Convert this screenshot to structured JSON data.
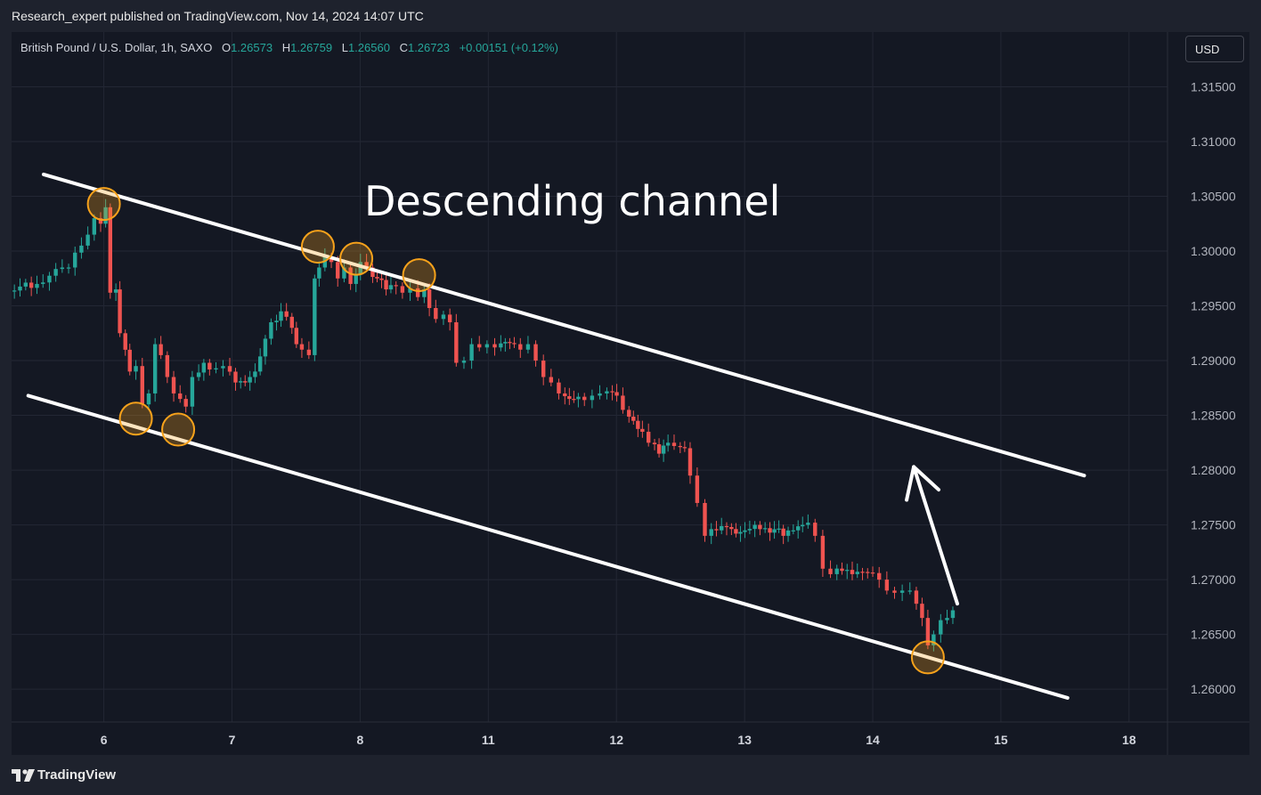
{
  "header": {
    "publisher_line": "Research_expert published on TradingView.com, Nov 14, 2024 14:07 UTC"
  },
  "legend": {
    "symbol": "British Pound / U.S. Dollar, 1h, SAXO",
    "open_label": "O",
    "open": "1.26573",
    "high_label": "H",
    "high": "1.26759",
    "low_label": "L",
    "low": "1.26560",
    "close_label": "C",
    "close": "1.26723",
    "change": "+0.00151 (+0.12%)"
  },
  "toolbar": {
    "currency": "USD"
  },
  "footer": {
    "brand": "TradingView"
  },
  "colors": {
    "up": "#26a69a",
    "down": "#ef5350",
    "background": "#141823",
    "grid": "#232734",
    "annotation": "#ffffff",
    "marker": "#f7a21b"
  },
  "chart_data": {
    "type": "candlestick",
    "title": "",
    "annotation_text": "Descending channel",
    "y_axis": {
      "side": "right",
      "ylim": [
        1.257,
        1.32
      ],
      "ticks": [
        1.26,
        1.265,
        1.27,
        1.275,
        1.28,
        1.285,
        1.29,
        1.295,
        1.3,
        1.305,
        1.31,
        1.315
      ],
      "tick_labels": [
        "1.26000",
        "1.26500",
        "1.27000",
        "1.27500",
        "1.28000",
        "1.28500",
        "1.29000",
        "1.29500",
        "1.30000",
        "1.30500",
        "1.31000",
        "1.31500"
      ]
    },
    "x_axis": {
      "ticks": [
        0,
        1,
        2,
        3,
        4,
        5,
        6,
        7,
        8
      ],
      "tick_labels": [
        "6",
        "7",
        "8",
        "11",
        "12",
        "13",
        "14",
        "15",
        "18"
      ],
      "xlim": [
        -0.72,
        8.3
      ]
    },
    "grid": true,
    "channel": {
      "upper": [
        [
          -0.47,
          1.307
        ],
        [
          7.65,
          1.2795
        ]
      ],
      "lower": [
        [
          -0.59,
          1.2868
        ],
        [
          7.52,
          1.2592
        ]
      ]
    },
    "touch_points": [
      [
        0.0,
        1.3043
      ],
      [
        0.25,
        1.2847
      ],
      [
        0.58,
        1.2837
      ],
      [
        1.67,
        1.3004
      ],
      [
        1.97,
        1.2993
      ],
      [
        2.46,
        1.2978
      ],
      [
        6.43,
        1.2629
      ]
    ],
    "projection_arrow": [
      [
        6.66,
        1.2678
      ],
      [
        6.32,
        1.2803
      ]
    ],
    "path": [
      [
        -0.72,
        1.297
      ],
      [
        -0.5,
        1.2985
      ],
      [
        -0.3,
        1.2985
      ],
      [
        -0.25,
        1.3005
      ],
      [
        -0.15,
        1.3015
      ],
      [
        -0.1,
        1.303
      ],
      [
        -0.05,
        1.3025
      ],
      [
        0.0,
        1.304
      ],
      [
        0.02,
        1.2962
      ],
      [
        0.08,
        1.2965
      ],
      [
        0.1,
        1.2925
      ],
      [
        0.15,
        1.289
      ],
      [
        0.22,
        1.2895
      ],
      [
        0.28,
        1.286
      ],
      [
        0.32,
        1.287
      ],
      [
        0.38,
        1.2915
      ],
      [
        0.42,
        1.2905
      ],
      [
        0.47,
        1.2885
      ],
      [
        0.52,
        1.287
      ],
      [
        0.57,
        1.2865
      ],
      [
        0.62,
        1.2858
      ],
      [
        0.66,
        1.2885
      ],
      [
        0.72,
        1.2898
      ],
      [
        0.8,
        1.2893
      ],
      [
        0.9,
        1.2895
      ],
      [
        0.96,
        1.288
      ],
      [
        1.05,
        1.288
      ],
      [
        1.12,
        1.289
      ],
      [
        1.2,
        1.292
      ],
      [
        1.28,
        1.2935
      ],
      [
        1.33,
        1.2945
      ],
      [
        1.4,
        1.294
      ],
      [
        1.45,
        1.2915
      ],
      [
        1.52,
        1.291
      ],
      [
        1.57,
        1.2905
      ],
      [
        1.63,
        1.2975
      ],
      [
        1.66,
        1.2985
      ],
      [
        1.7,
        1.2995
      ],
      [
        1.75,
        1.299
      ],
      [
        1.8,
        1.2975
      ],
      [
        1.85,
        1.2985
      ],
      [
        1.9,
        1.297
      ],
      [
        1.95,
        1.299
      ],
      [
        2.02,
        1.2985
      ],
      [
        2.08,
        1.2975
      ],
      [
        2.15,
        1.2965
      ],
      [
        2.22,
        1.2968
      ],
      [
        2.3,
        1.2962
      ],
      [
        2.36,
        1.2966
      ],
      [
        2.42,
        1.2958
      ],
      [
        2.48,
        1.2965
      ],
      [
        2.52,
        1.2948
      ],
      [
        2.56,
        1.2938
      ],
      [
        2.62,
        1.2942
      ],
      [
        2.68,
        1.2935
      ],
      [
        2.72,
        1.2898
      ],
      [
        2.78,
        1.29
      ],
      [
        2.84,
        1.2915
      ],
      [
        2.9,
        1.2912
      ],
      [
        2.96,
        1.2915
      ],
      [
        3.02,
        1.2912
      ],
      [
        3.08,
        1.2917
      ],
      [
        3.15,
        1.2915
      ],
      [
        3.22,
        1.291
      ],
      [
        3.28,
        1.2915
      ],
      [
        3.34,
        1.29
      ],
      [
        3.4,
        1.2885
      ],
      [
        3.46,
        1.288
      ],
      [
        3.52,
        1.287
      ],
      [
        3.58,
        1.2865
      ],
      [
        3.65,
        1.2867
      ],
      [
        3.72,
        1.2864
      ],
      [
        3.78,
        1.2868
      ],
      [
        3.84,
        1.287
      ],
      [
        3.9,
        1.2872
      ],
      [
        3.95,
        1.2868
      ],
      [
        4.02,
        1.2855
      ],
      [
        4.08,
        1.2845
      ],
      [
        4.15,
        1.2835
      ],
      [
        4.22,
        1.2825
      ],
      [
        4.28,
        1.2815
      ],
      [
        4.35,
        1.2825
      ],
      [
        4.42,
        1.2822
      ],
      [
        4.48,
        1.282
      ],
      [
        4.55,
        1.2795
      ],
      [
        4.6,
        1.277
      ],
      [
        4.66,
        1.274
      ],
      [
        4.72,
        1.2745
      ],
      [
        4.8,
        1.2748
      ],
      [
        4.88,
        1.2742
      ],
      [
        4.95,
        1.2745
      ],
      [
        5.02,
        1.275
      ],
      [
        5.1,
        1.2747
      ],
      [
        5.18,
        1.2746
      ],
      [
        5.25,
        1.274
      ],
      [
        5.32,
        1.2745
      ],
      [
        5.4,
        1.275
      ],
      [
        5.47,
        1.2752
      ],
      [
        5.52,
        1.274
      ],
      [
        5.58,
        1.271
      ],
      [
        5.64,
        1.2705
      ],
      [
        5.7,
        1.2708
      ],
      [
        5.78,
        1.2705
      ],
      [
        5.86,
        1.2707
      ],
      [
        5.94,
        1.2706
      ],
      [
        6.02,
        1.27
      ],
      [
        6.08,
        1.269
      ],
      [
        6.14,
        1.2688
      ],
      [
        6.2,
        1.269
      ],
      [
        6.26,
        1.269
      ],
      [
        6.32,
        1.2678
      ],
      [
        6.36,
        1.2665
      ],
      [
        6.41,
        1.264
      ],
      [
        6.45,
        1.265
      ],
      [
        6.5,
        1.2663
      ],
      [
        6.56,
        1.2665
      ],
      [
        6.6,
        1.2672
      ]
    ]
  }
}
